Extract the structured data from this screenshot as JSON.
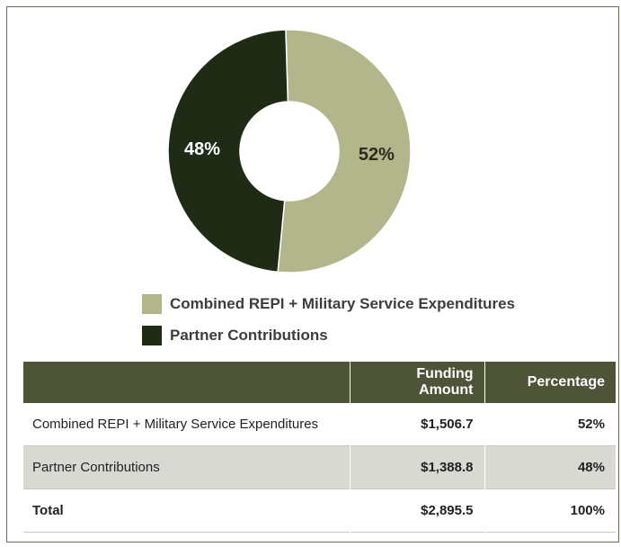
{
  "chart_data": {
    "type": "pie",
    "donut": true,
    "slices": [
      {
        "label": "Combined REPI + Military Service Expenditures",
        "percent": 52,
        "label_text": "52%",
        "color": "#b3b68a"
      },
      {
        "label": "Partner Contributions",
        "percent": 48,
        "label_text": "48%",
        "color": "#1f2b14"
      }
    ],
    "legend_placement": "bottom"
  },
  "legend": {
    "items": [
      {
        "label": "Combined REPI + Military Service Expenditures",
        "color": "#b3b68a"
      },
      {
        "label": "Partner Contributions",
        "color": "#1f2b14"
      }
    ]
  },
  "table": {
    "headers": [
      "",
      "Funding Amount",
      "Percentage"
    ],
    "rows": [
      {
        "name": "Combined REPI + Military Service Expenditures",
        "amount": "$1,506.7",
        "percent": "52%"
      },
      {
        "name": "Partner Contributions",
        "amount": "$1,388.8",
        "percent": "48%"
      },
      {
        "name": "Total",
        "amount": "$2,895.5",
        "percent": "100%"
      }
    ],
    "header_color": "#4d5437"
  }
}
